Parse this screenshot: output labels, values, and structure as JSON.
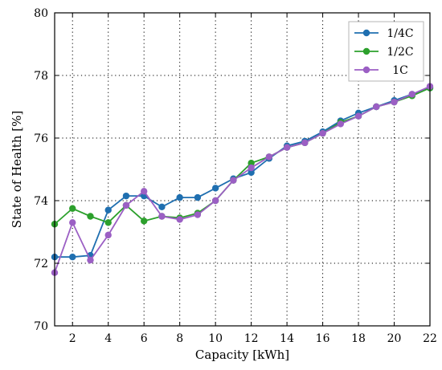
{
  "chart_data": {
    "type": "line",
    "xlabel": "Capacity [kWh]",
    "ylabel": "State of Health [%]",
    "xlim": [
      1,
      22
    ],
    "ylim": [
      70,
      80
    ],
    "xticks": [
      2,
      4,
      6,
      8,
      10,
      12,
      14,
      16,
      18,
      20,
      22
    ],
    "yticks": [
      70,
      72,
      74,
      76,
      78,
      80
    ],
    "grid": true,
    "legend_position": "top-right",
    "x": [
      1,
      2,
      3,
      4,
      5,
      6,
      7,
      8,
      9,
      10,
      11,
      12,
      13,
      14,
      15,
      16,
      17,
      18,
      19,
      20,
      21,
      22
    ],
    "series": [
      {
        "name": "1/4C",
        "color": "#1f6fb0",
        "values": [
          72.2,
          72.2,
          72.25,
          73.7,
          74.15,
          74.15,
          73.8,
          74.1,
          74.1,
          74.4,
          74.7,
          74.9,
          75.35,
          75.75,
          75.9,
          76.2,
          76.55,
          76.8,
          77.0,
          77.2,
          77.4,
          77.6
        ]
      },
      {
        "name": "1/2C",
        "color": "#2ca02c",
        "values": [
          73.25,
          73.75,
          73.5,
          73.3,
          73.85,
          73.35,
          73.5,
          73.45,
          73.6,
          74.0,
          74.65,
          75.2,
          75.4,
          75.7,
          75.85,
          76.15,
          76.5,
          76.7,
          77.0,
          77.15,
          77.35,
          77.6
        ]
      },
      {
        "name": "1C",
        "color": "#9b5fc4",
        "values": [
          71.7,
          73.3,
          72.1,
          72.9,
          73.85,
          74.3,
          73.5,
          73.4,
          73.55,
          74.0,
          74.65,
          75.05,
          75.4,
          75.7,
          75.85,
          76.15,
          76.45,
          76.7,
          77.0,
          77.15,
          77.4,
          77.65
        ]
      }
    ]
  }
}
